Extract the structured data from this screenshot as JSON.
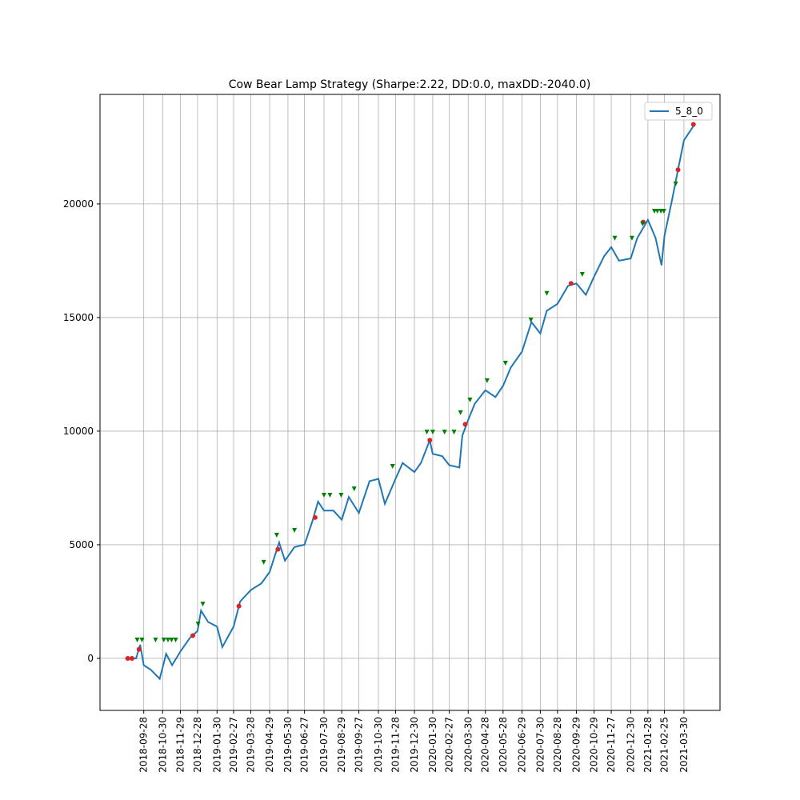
{
  "chart_data": {
    "type": "line",
    "title": "Cow Bear Lamp Strategy (Sharpe:2.22, DD:0.0, maxDD:-2040.0)",
    "legend": "upper right",
    "grid": true,
    "xlim": [
      "2018-07-16",
      "2021-05-30"
    ],
    "xticks": [
      "2018-09-28",
      "2018-10-30",
      "2018-11-29",
      "2018-12-28",
      "2019-01-30",
      "2019-02-27",
      "2019-03-28",
      "2019-04-29",
      "2019-05-30",
      "2019-06-27",
      "2019-07-30",
      "2019-08-29",
      "2019-09-27",
      "2019-10-30",
      "2019-11-28",
      "2019-12-30",
      "2020-01-30",
      "2020-02-27",
      "2020-03-30",
      "2020-04-28",
      "2020-05-28",
      "2020-06-29",
      "2020-07-30",
      "2020-08-28",
      "2020-09-29",
      "2020-10-29",
      "2020-11-27",
      "2020-12-30",
      "2021-01-28",
      "2021-02-25",
      "2021-03-30"
    ],
    "ylim": [
      -2290,
      24820
    ],
    "yticks": [
      0,
      5000,
      10000,
      15000,
      20000
    ],
    "series": [
      {
        "name": "5_8_0",
        "color": "#1f77b4",
        "x": [
          "2018-08-28",
          "2018-09-15",
          "2018-09-22",
          "2018-09-28",
          "2018-10-10",
          "2018-10-25",
          "2018-11-05",
          "2018-11-15",
          "2018-11-29",
          "2018-12-15",
          "2018-12-28",
          "2019-01-03",
          "2019-01-15",
          "2019-01-30",
          "2019-02-08",
          "2019-02-27",
          "2019-03-10",
          "2019-03-28",
          "2019-04-15",
          "2019-04-29",
          "2019-05-15",
          "2019-05-25",
          "2019-06-10",
          "2019-06-27",
          "2019-07-10",
          "2019-07-20",
          "2019-07-30",
          "2019-08-15",
          "2019-08-29",
          "2019-09-10",
          "2019-09-27",
          "2019-10-15",
          "2019-10-30",
          "2019-11-10",
          "2019-11-28",
          "2019-12-10",
          "2019-12-30",
          "2020-01-10",
          "2020-01-25",
          "2020-01-30",
          "2020-02-15",
          "2020-02-27",
          "2020-03-15",
          "2020-03-20",
          "2020-03-30",
          "2020-04-10",
          "2020-04-28",
          "2020-05-15",
          "2020-05-28",
          "2020-06-10",
          "2020-06-29",
          "2020-07-15",
          "2020-07-30",
          "2020-08-10",
          "2020-08-28",
          "2020-09-15",
          "2020-09-29",
          "2020-10-15",
          "2020-10-29",
          "2020-11-15",
          "2020-11-27",
          "2020-12-10",
          "2020-12-30",
          "2021-01-10",
          "2021-01-28",
          "2021-02-10",
          "2021-02-20",
          "2021-02-25",
          "2021-03-10",
          "2021-03-20",
          "2021-03-30",
          "2021-04-17"
        ],
        "values": [
          0,
          0,
          600,
          -300,
          -500,
          -900,
          200,
          -300,
          300,
          900,
          1200,
          2100,
          1600,
          1400,
          500,
          1400,
          2500,
          3000,
          3300,
          3800,
          5100,
          4300,
          4900,
          5000,
          6000,
          6900,
          6500,
          6500,
          6100,
          7100,
          6400,
          7800,
          7900,
          6800,
          7900,
          8600,
          8200,
          8600,
          9600,
          9000,
          8900,
          8500,
          8400,
          9800,
          10500,
          11200,
          11800,
          11500,
          12000,
          12800,
          13500,
          14800,
          14300,
          15300,
          15600,
          16400,
          16500,
          16000,
          16800,
          17700,
          18100,
          17500,
          17600,
          18500,
          19300,
          18500,
          17300,
          18600,
          20200,
          21500,
          22800,
          23500
        ]
      }
    ],
    "markers": [
      {
        "marker": "o",
        "color": "#d62728",
        "x": [
          "2018-09-01",
          "2018-09-08",
          "2018-09-20",
          "2018-12-20",
          "2019-03-08",
          "2019-05-13",
          "2019-07-15",
          "2020-01-25",
          "2020-03-25",
          "2020-09-20",
          "2021-01-20",
          "2021-03-20",
          "2021-04-15"
        ],
        "values": [
          0,
          0,
          400,
          1000,
          2300,
          4800,
          6200,
          9600,
          10300,
          16500,
          19200,
          21500,
          23500
        ]
      },
      {
        "marker": "v",
        "color": "#008000",
        "x": [
          "2018-09-17",
          "2018-09-25",
          "2018-10-18",
          "2018-11-01",
          "2018-11-08",
          "2018-11-14",
          "2018-11-21",
          "2018-12-29",
          "2019-01-06",
          "2019-04-19",
          "2019-05-11",
          "2019-06-10",
          "2019-07-30",
          "2019-08-09",
          "2019-08-28",
          "2019-09-19",
          "2019-11-23",
          "2020-01-20",
          "2020-01-30",
          "2020-02-19",
          "2020-03-06",
          "2020-03-17",
          "2020-04-02",
          "2020-05-01",
          "2020-06-01",
          "2020-07-14",
          "2020-08-10",
          "2020-10-09",
          "2020-12-03",
          "2021-01-01",
          "2021-01-19",
          "2021-02-08",
          "2021-02-13",
          "2021-02-19",
          "2021-02-24",
          "2021-03-16"
        ],
        "values": [
          810,
          810,
          810,
          810,
          810,
          810,
          810,
          1510,
          2390,
          4230,
          5420,
          5630,
          7180,
          7180,
          7180,
          7460,
          8450,
          9960,
          9960,
          9960,
          9960,
          10810,
          11370,
          12220,
          12990,
          14890,
          16060,
          16900,
          18490,
          18490,
          19120,
          19680,
          19680,
          19680,
          19680,
          20880
        ]
      }
    ]
  }
}
